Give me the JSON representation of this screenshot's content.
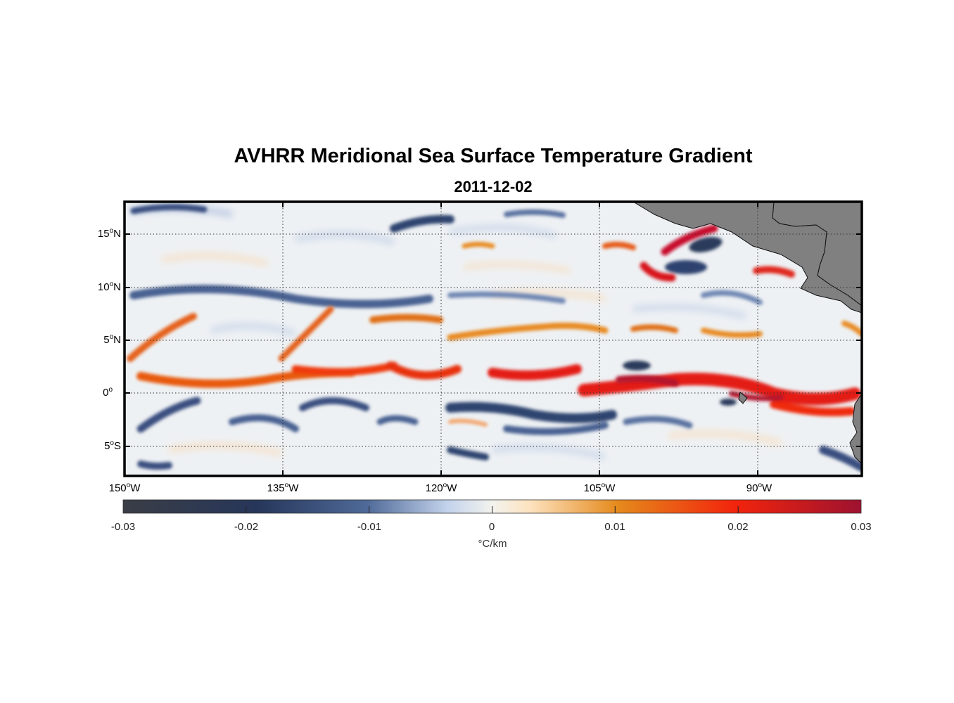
{
  "title": "AVHRR Meridional Sea Surface Temperature Gradient",
  "subtitle": "2011-12-02",
  "axes": {
    "lat_ticks": [
      {
        "deg": "15",
        "hemi": "N"
      },
      {
        "deg": "10",
        "hemi": "N"
      },
      {
        "deg": "5",
        "hemi": "N"
      },
      {
        "deg": "0",
        "hemi": ""
      },
      {
        "deg": "5",
        "hemi": "S"
      }
    ],
    "lon_ticks": [
      {
        "deg": "150",
        "hemi": "W"
      },
      {
        "deg": "135",
        "hemi": "W"
      },
      {
        "deg": "120",
        "hemi": "W"
      },
      {
        "deg": "105",
        "hemi": "W"
      },
      {
        "deg": "90",
        "hemi": "W"
      }
    ],
    "lat_range": [
      -8,
      18
    ],
    "lon_range": [
      -150,
      -80
    ]
  },
  "colorbar": {
    "ticks": [
      "-0.03",
      "-0.02",
      "-0.01",
      "0",
      "0.01",
      "0.02",
      "0.03"
    ],
    "unit": "°C/km",
    "range": [
      -0.03,
      0.03
    ]
  },
  "colors": {
    "land": "#808080",
    "neg_strong": "#2b3a5c",
    "neg_weak": "#b9c9e3",
    "zero": "#f2f2f2",
    "pos_weak": "#f6a34c",
    "pos_strong": "#d8141c"
  }
}
